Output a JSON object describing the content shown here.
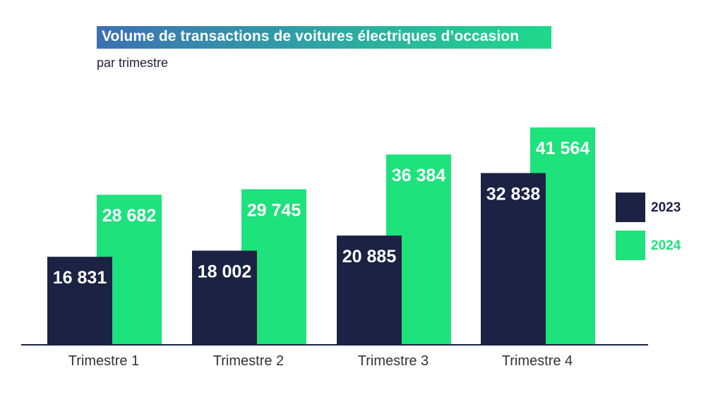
{
  "title": "Volume de transactions de voitures électriques d’occasion",
  "subtitle": "par trimestre",
  "colors": {
    "2023": "#1c2244",
    "2024": "#1ee27c",
    "axis": "#1c2244",
    "tick_text": "#333333"
  },
  "legend": [
    {
      "label": "2023",
      "color": "#1c2244"
    },
    {
      "label": "2024",
      "color": "#1ee27c"
    }
  ],
  "chart_data": {
    "type": "bar",
    "title": "Volume de transactions de voitures électriques d’occasion",
    "subtitle": "par trimestre",
    "xlabel": "",
    "ylabel": "",
    "ylim": [
      0,
      45000
    ],
    "grid": false,
    "legend_position": "right",
    "categories": [
      "Trimestre 1",
      "Trimestre 2",
      "Trimestre 3",
      "Trimestre 4"
    ],
    "series": [
      {
        "name": "2023",
        "values": [
          16831,
          18002,
          20885,
          32838
        ],
        "labels": [
          "16 831",
          "18 002",
          "20 885",
          "32 838"
        ]
      },
      {
        "name": "2024",
        "values": [
          28682,
          29745,
          36384,
          41564
        ],
        "labels": [
          "28 682",
          "29 745",
          "36 384",
          "41 564"
        ]
      }
    ]
  }
}
